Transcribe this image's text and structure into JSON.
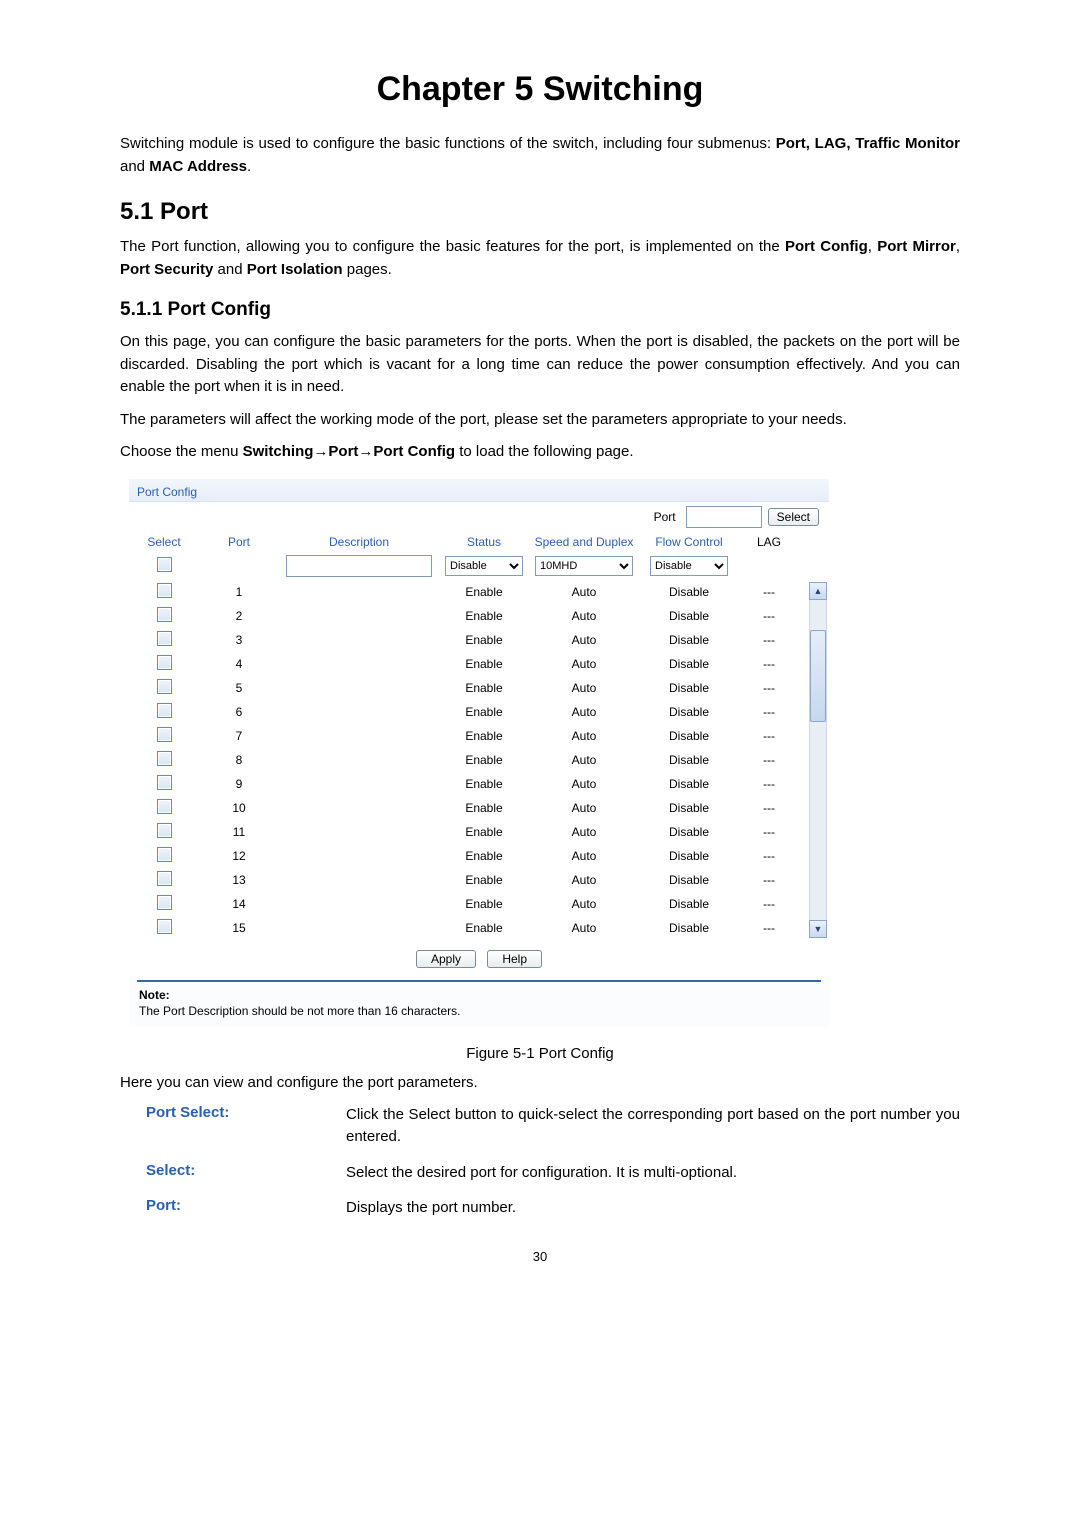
{
  "chapter_title": "Chapter 5  Switching",
  "intro_before_bold": "Switching module is used to configure the basic functions of the switch, including four submenus: ",
  "intro_bold_list": "Port, LAG, Traffic Monitor",
  "intro_and": " and ",
  "intro_bold_last": "MAC Address",
  "intro_period": ".",
  "h2_port": "5.1   Port",
  "port_p1_a": "The Port function, allowing you to configure the basic features for the port, is implemented on the ",
  "port_p1_b": "Port Config",
  "port_p1_c": ", ",
  "port_p1_d": "Port Mirror",
  "port_p1_e": ", ",
  "port_p1_f": "Port Security",
  "port_p1_g": " and ",
  "port_p1_h": "Port Isolation",
  "port_p1_i": " pages.",
  "h3_portconfig": "5.1.1 Port Config",
  "pc_p1": "On this page, you can configure the basic parameters for the ports. When the port is disabled, the packets on the port will be discarded. Disabling the port which is vacant for a long time can reduce the power consumption effectively. And you can enable the port when it is in need.",
  "pc_p2": "The parameters will affect the working mode of the port, please set the parameters appropriate to your needs.",
  "choose_a": "Choose the menu ",
  "choose_b": "Switching→Port→Port Config",
  "choose_c": " to load the following page.",
  "panel": {
    "title": "Port Config",
    "top_label": "Port",
    "select_btn": "Select",
    "headers": {
      "select": "Select",
      "port": "Port",
      "description": "Description",
      "status": "Status",
      "speed": "Speed and Duplex",
      "flow": "Flow Control",
      "lag": "LAG"
    },
    "ctrl": {
      "status_sel": "Disable",
      "speed_sel": "10MHD",
      "flow_sel": "Disable"
    },
    "rows": [
      {
        "port": "1",
        "desc": "",
        "status": "Enable",
        "speed": "Auto",
        "flow": "Disable",
        "lag": "---"
      },
      {
        "port": "2",
        "desc": "",
        "status": "Enable",
        "speed": "Auto",
        "flow": "Disable",
        "lag": "---"
      },
      {
        "port": "3",
        "desc": "",
        "status": "Enable",
        "speed": "Auto",
        "flow": "Disable",
        "lag": "---"
      },
      {
        "port": "4",
        "desc": "",
        "status": "Enable",
        "speed": "Auto",
        "flow": "Disable",
        "lag": "---"
      },
      {
        "port": "5",
        "desc": "",
        "status": "Enable",
        "speed": "Auto",
        "flow": "Disable",
        "lag": "---"
      },
      {
        "port": "6",
        "desc": "",
        "status": "Enable",
        "speed": "Auto",
        "flow": "Disable",
        "lag": "---"
      },
      {
        "port": "7",
        "desc": "",
        "status": "Enable",
        "speed": "Auto",
        "flow": "Disable",
        "lag": "---"
      },
      {
        "port": "8",
        "desc": "",
        "status": "Enable",
        "speed": "Auto",
        "flow": "Disable",
        "lag": "---"
      },
      {
        "port": "9",
        "desc": "",
        "status": "Enable",
        "speed": "Auto",
        "flow": "Disable",
        "lag": "---"
      },
      {
        "port": "10",
        "desc": "",
        "status": "Enable",
        "speed": "Auto",
        "flow": "Disable",
        "lag": "---"
      },
      {
        "port": "11",
        "desc": "",
        "status": "Enable",
        "speed": "Auto",
        "flow": "Disable",
        "lag": "---"
      },
      {
        "port": "12",
        "desc": "",
        "status": "Enable",
        "speed": "Auto",
        "flow": "Disable",
        "lag": "---"
      },
      {
        "port": "13",
        "desc": "",
        "status": "Enable",
        "speed": "Auto",
        "flow": "Disable",
        "lag": "---"
      },
      {
        "port": "14",
        "desc": "",
        "status": "Enable",
        "speed": "Auto",
        "flow": "Disable",
        "lag": "---"
      },
      {
        "port": "15",
        "desc": "",
        "status": "Enable",
        "speed": "Auto",
        "flow": "Disable",
        "lag": "---"
      }
    ],
    "apply_btn": "Apply",
    "help_btn": "Help",
    "note_label": "Note:",
    "note_text": "The Port Description should be not  more than 16 characters."
  },
  "figure_caption": "Figure 5-1 Port Config",
  "post_fig_text": "Here you can view and configure the port parameters.",
  "params": [
    {
      "label": "Port Select:",
      "desc": "Click the Select button to quick-select the corresponding port based on the port number you entered."
    },
    {
      "label": "Select:",
      "desc": "Select the desired port for configuration. It is multi-optional."
    },
    {
      "label": "Port:",
      "desc": "Displays the port number."
    }
  ],
  "page_number": "30",
  "colors": {
    "link_blue": "#2a5fb0",
    "panel_border": "#d8e3f3"
  }
}
